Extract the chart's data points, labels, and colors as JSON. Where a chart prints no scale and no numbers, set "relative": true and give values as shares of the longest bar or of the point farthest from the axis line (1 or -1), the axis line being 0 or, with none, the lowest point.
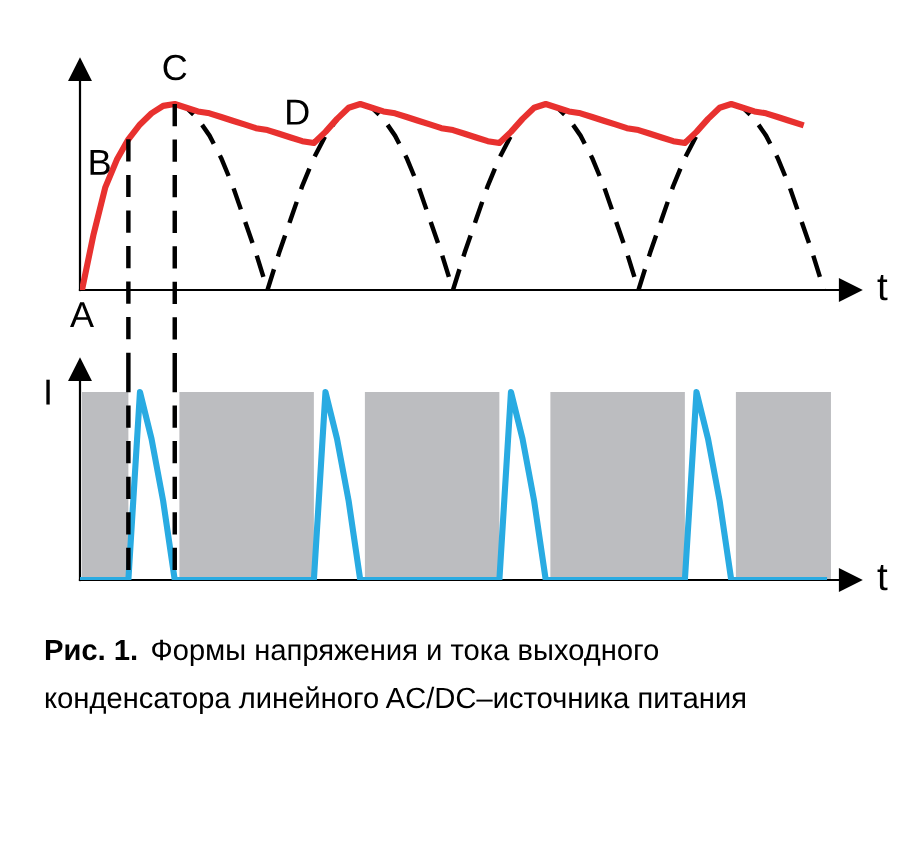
{
  "chart_data": [
    {
      "type": "line",
      "relative": true,
      "xlabel": "t",
      "grid": false,
      "marker": "none",
      "categories": [
        null,
        null,
        null,
        null,
        null,
        null,
        null,
        null,
        null,
        null,
        null,
        null,
        null,
        null,
        null,
        null,
        null,
        null,
        null,
        null,
        null,
        null,
        null,
        null,
        null,
        null,
        null,
        null,
        null,
        null,
        null,
        null,
        null,
        null,
        null,
        null,
        null,
        null,
        null,
        null,
        null,
        null,
        null,
        null,
        null,
        null,
        null,
        null,
        null,
        null,
        null,
        null,
        null,
        null,
        null,
        null,
        null,
        null,
        null,
        null,
        null,
        null,
        null,
        null,
        null
      ],
      "series": [
        {
          "color": "#000000",
          "line_style": "dashed",
          "values": [
            null,
            null,
            null,
            null,
            null,
            null,
            null,
            null,
            1,
            0.98,
            0.92,
            0.83,
            0.71,
            0.56,
            0.38,
            0.2,
            0,
            0.2,
            0.38,
            0.56,
            0.71,
            0.83,
            0.92,
            null,
            1,
            0.98,
            0.92,
            0.83,
            0.71,
            0.56,
            0.38,
            0.2,
            0,
            0.2,
            0.38,
            0.56,
            0.71,
            0.83,
            null,
            null,
            1,
            0.98,
            0.92,
            0.83,
            0.71,
            0.56,
            0.38,
            0.2,
            0,
            0.2,
            0.38,
            0.56,
            0.71,
            0.83,
            null,
            null,
            1,
            0.98,
            0.92,
            0.83,
            0.71,
            0.56,
            0.38,
            0.2,
            0
          ]
        },
        {
          "color": "#e8312f",
          "line_style": "solid",
          "values": [
            0,
            0.3,
            0.55,
            0.7,
            0.81,
            0.89,
            0.95,
            0.99,
            1,
            0.98,
            0.96,
            0.95,
            0.93,
            0.91,
            0.89,
            0.87,
            0.86,
            0.84,
            0.82,
            0.8,
            0.79,
            0.85,
            0.92,
            0.98,
            1,
            0.98,
            0.96,
            0.95,
            0.93,
            0.91,
            0.89,
            0.87,
            0.86,
            0.84,
            0.82,
            0.8,
            0.79,
            0.85,
            0.92,
            0.98,
            1,
            0.98,
            0.96,
            0.95,
            0.93,
            0.91,
            0.89,
            0.87,
            0.86,
            0.84,
            0.82,
            0.8,
            0.79,
            0.85,
            0.92,
            0.98,
            1,
            0.98,
            0.96,
            0.95,
            0.93,
            0.91,
            0.89,
            null,
            null
          ]
        }
      ],
      "annotations": [
        "A",
        "B",
        "C",
        "D"
      ]
    },
    {
      "type": "line",
      "relative": true,
      "xlabel": "t",
      "ylabel": "I",
      "grid": false,
      "marker": "none",
      "categories": [
        null,
        null,
        null,
        null,
        null,
        null,
        null,
        null,
        null,
        null,
        null,
        null,
        null,
        null,
        null,
        null,
        null,
        null,
        null,
        null,
        null,
        null,
        null,
        null,
        null,
        null,
        null,
        null,
        null,
        null,
        null,
        null,
        null,
        null,
        null,
        null,
        null,
        null,
        null,
        null,
        null,
        null,
        null,
        null,
        null,
        null,
        null,
        null,
        null,
        null,
        null,
        null,
        null,
        null,
        null,
        null,
        null,
        null,
        null,
        null,
        null,
        null,
        null,
        null,
        null
      ],
      "series": [
        {
          "color": "#29abe2",
          "line_style": "solid",
          "values": [
            0,
            0,
            0,
            0,
            0,
            1,
            0.75,
            0.42,
            0,
            0,
            0,
            0,
            0,
            0,
            0,
            0,
            0,
            0,
            0,
            0,
            0,
            1,
            0.75,
            0.42,
            0,
            0,
            0,
            0,
            0,
            0,
            0,
            0,
            0,
            0,
            0,
            0,
            0,
            1,
            0.75,
            0.42,
            0,
            0,
            0,
            0,
            0,
            0,
            0,
            0,
            0,
            0,
            0,
            0,
            0,
            1,
            0.75,
            0.42,
            0,
            0,
            0,
            0,
            0,
            0,
            0,
            0,
            0
          ]
        }
      ],
      "annotations": [
        "Рис. 1.",
        "Формы напряжения и тока выходного конденсатора линейного AC/DC–источника питания"
      ]
    }
  ]
}
